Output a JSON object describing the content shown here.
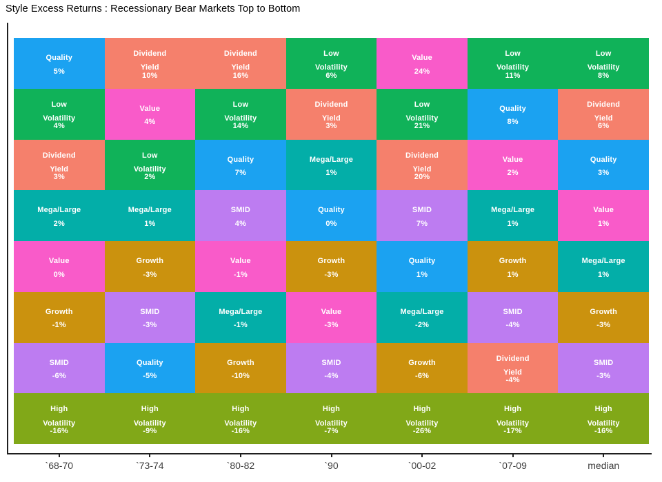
{
  "chart_data": {
    "type": "heatmap",
    "title": "Style Excess Returns : Recessionary Bear Markets Top to Bottom",
    "x_axis_labels": [
      "`68-70",
      "`73-74",
      "`80-82",
      "`90",
      "`00-02",
      "`07-09",
      "median"
    ],
    "legend": "none",
    "grid": "off",
    "text_color": "#FFFFFF",
    "axis_color": "#1F1F1F",
    "axis_label_color": "#3D3D3D",
    "style_colors": {
      "Quality": "#1BA2F1",
      "Dividend Yield": "#F5806C",
      "Low Volatility": "#10B259",
      "Value": "#F95BC9",
      "Mega/Large": "#03AEA8",
      "SMID": "#BD7CF1",
      "Growth": "#CB920E",
      "High Volatility": "#81A818"
    },
    "rows": [
      [
        {
          "style": "Quality",
          "value": "5%"
        },
        {
          "style": "Dividend Yield",
          "value": "10%"
        },
        {
          "style": "Dividend Yield",
          "value": "16%"
        },
        {
          "style": "Low Volatility",
          "value": "6%"
        },
        {
          "style": "Value",
          "value": "24%"
        },
        {
          "style": "Low Volatility",
          "value": "11%"
        },
        {
          "style": "Low Volatility",
          "value": "8%"
        }
      ],
      [
        {
          "style": "Low Volatility",
          "value": "4%"
        },
        {
          "style": "Value",
          "value": "4%"
        },
        {
          "style": "Low Volatility",
          "value": "14%"
        },
        {
          "style": "Dividend Yield",
          "value": "3%"
        },
        {
          "style": "Low Volatility",
          "value": "21%"
        },
        {
          "style": "Quality",
          "value": "8%"
        },
        {
          "style": "Dividend Yield",
          "value": "6%"
        }
      ],
      [
        {
          "style": "Dividend Yield",
          "value": "3%"
        },
        {
          "style": "Low Volatility",
          "value": "2%"
        },
        {
          "style": "Quality",
          "value": "7%"
        },
        {
          "style": "Mega/Large",
          "value": "1%"
        },
        {
          "style": "Dividend Yield",
          "value": "20%"
        },
        {
          "style": "Value",
          "value": "2%"
        },
        {
          "style": "Quality",
          "value": "3%"
        }
      ],
      [
        {
          "style": "Mega/Large",
          "value": "2%"
        },
        {
          "style": "Mega/Large",
          "value": "1%"
        },
        {
          "style": "SMID",
          "value": "4%"
        },
        {
          "style": "Quality",
          "value": "0%"
        },
        {
          "style": "SMID",
          "value": "7%"
        },
        {
          "style": "Mega/Large",
          "value": "1%"
        },
        {
          "style": "Value",
          "value": "1%"
        }
      ],
      [
        {
          "style": "Value",
          "value": "0%"
        },
        {
          "style": "Growth",
          "value": "-3%"
        },
        {
          "style": "Value",
          "value": "-1%"
        },
        {
          "style": "Growth",
          "value": "-3%"
        },
        {
          "style": "Quality",
          "value": "1%"
        },
        {
          "style": "Growth",
          "value": "1%"
        },
        {
          "style": "Mega/Large",
          "value": "1%"
        }
      ],
      [
        {
          "style": "Growth",
          "value": "-1%"
        },
        {
          "style": "SMID",
          "value": "-3%"
        },
        {
          "style": "Mega/Large",
          "value": "-1%"
        },
        {
          "style": "Value",
          "value": "-3%"
        },
        {
          "style": "Mega/Large",
          "value": "-2%"
        },
        {
          "style": "SMID",
          "value": "-4%"
        },
        {
          "style": "Growth",
          "value": "-3%"
        }
      ],
      [
        {
          "style": "SMID",
          "value": "-6%"
        },
        {
          "style": "Quality",
          "value": "-5%"
        },
        {
          "style": "Growth",
          "value": "-10%"
        },
        {
          "style": "SMID",
          "value": "-4%"
        },
        {
          "style": "Growth",
          "value": "-6%"
        },
        {
          "style": "Dividend Yield",
          "value": "-4%"
        },
        {
          "style": "SMID",
          "value": "-3%"
        }
      ],
      [
        {
          "style": "High Volatility",
          "value": "-16%"
        },
        {
          "style": "High Volatility",
          "value": "-9%"
        },
        {
          "style": "High Volatility",
          "value": "-16%"
        },
        {
          "style": "High Volatility",
          "value": "-7%"
        },
        {
          "style": "High Volatility",
          "value": "-26%"
        },
        {
          "style": "High Volatility",
          "value": "-17%"
        },
        {
          "style": "High Volatility",
          "value": "-16%"
        }
      ]
    ]
  }
}
